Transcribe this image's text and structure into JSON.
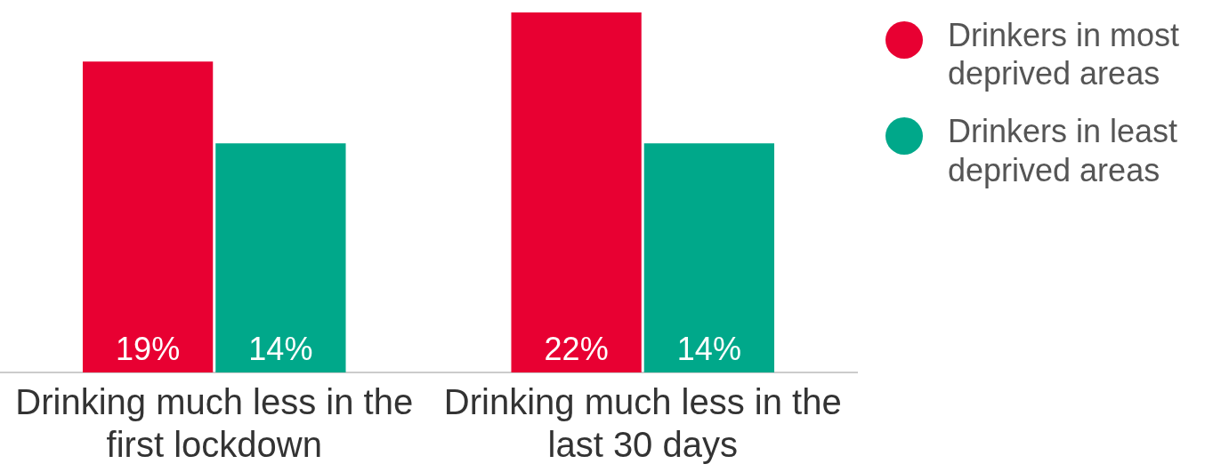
{
  "chart_data": {
    "type": "bar",
    "categories": [
      "Drinking much less in the first lockdown",
      "Drinking much less in the last 30 days"
    ],
    "series": [
      {
        "name": "Drinkers in most deprived areas",
        "color": "#e80032",
        "values": [
          19,
          22
        ],
        "value_labels": [
          "19%",
          "22%"
        ]
      },
      {
        "name": "Drinkers in least deprived areas",
        "color": "#00a88a",
        "values": [
          14,
          14
        ],
        "value_labels": [
          "14%",
          "14%"
        ]
      }
    ],
    "legend": "right",
    "grid": false
  }
}
